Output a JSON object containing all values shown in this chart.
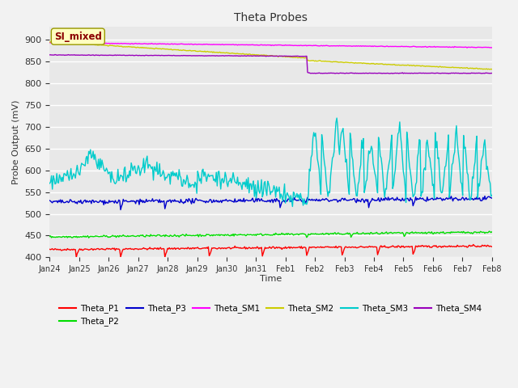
{
  "title": "Theta Probes",
  "xlabel": "Time",
  "ylabel": "Probe Output (mV)",
  "ylim": [
    400,
    930
  ],
  "yticks": [
    400,
    450,
    500,
    550,
    600,
    650,
    700,
    750,
    800,
    850,
    900
  ],
  "plot_bg": "#e8e8e8",
  "fig_bg": "#f2f2f2",
  "grid_color": "#ffffff",
  "annotation_text": "SI_mixed",
  "annotation_color": "#8B0000",
  "annotation_bg": "#ffffc0",
  "annotation_edge": "#999900",
  "series_colors": {
    "Theta_P1": "#ff0000",
    "Theta_P2": "#00dd00",
    "Theta_P3": "#0000cc",
    "Theta_SM1": "#ff00ff",
    "Theta_SM2": "#cccc00",
    "Theta_SM3": "#00cccc",
    "Theta_SM4": "#9900bb"
  },
  "x_labels": [
    "Jan 24",
    "Jan 25",
    "Jan 26",
    "Jan 27",
    "Jan 28",
    "Jan 29",
    "Jan 30",
    "Jan 31",
    "Feb 1",
    "Feb 2",
    "Feb 3",
    "Feb 4",
    "Feb 5",
    "Feb 6",
    "Feb 7",
    "Feb 8"
  ],
  "n_points": 500
}
